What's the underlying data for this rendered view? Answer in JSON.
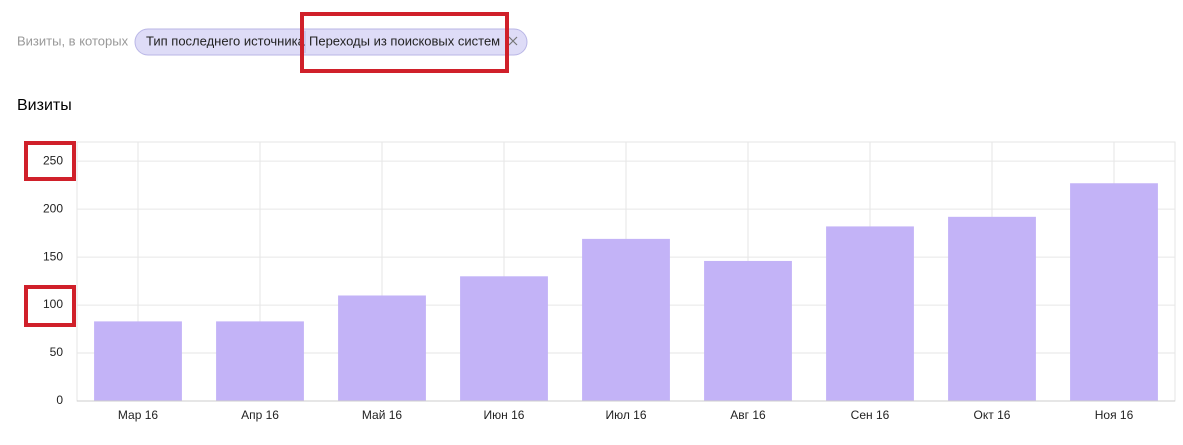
{
  "filter": {
    "label": "Визиты, в которых",
    "chips": [
      "Тип последнего источника",
      "Переходы из поисковых систем"
    ]
  },
  "chart_data": {
    "type": "bar",
    "title": "Визиты",
    "categories": [
      "Мар 16",
      "Апр 16",
      "Май 16",
      "Июн 16",
      "Июл 16",
      "Авг 16",
      "Сен 16",
      "Окт 16",
      "Ноя 16"
    ],
    "values": [
      83,
      83,
      110,
      130,
      169,
      146,
      182,
      192,
      227
    ],
    "color": "#c3b3f7",
    "ylim": [
      0,
      270
    ],
    "yticks": [
      0,
      50,
      100,
      150,
      200,
      250
    ],
    "grid": true
  }
}
